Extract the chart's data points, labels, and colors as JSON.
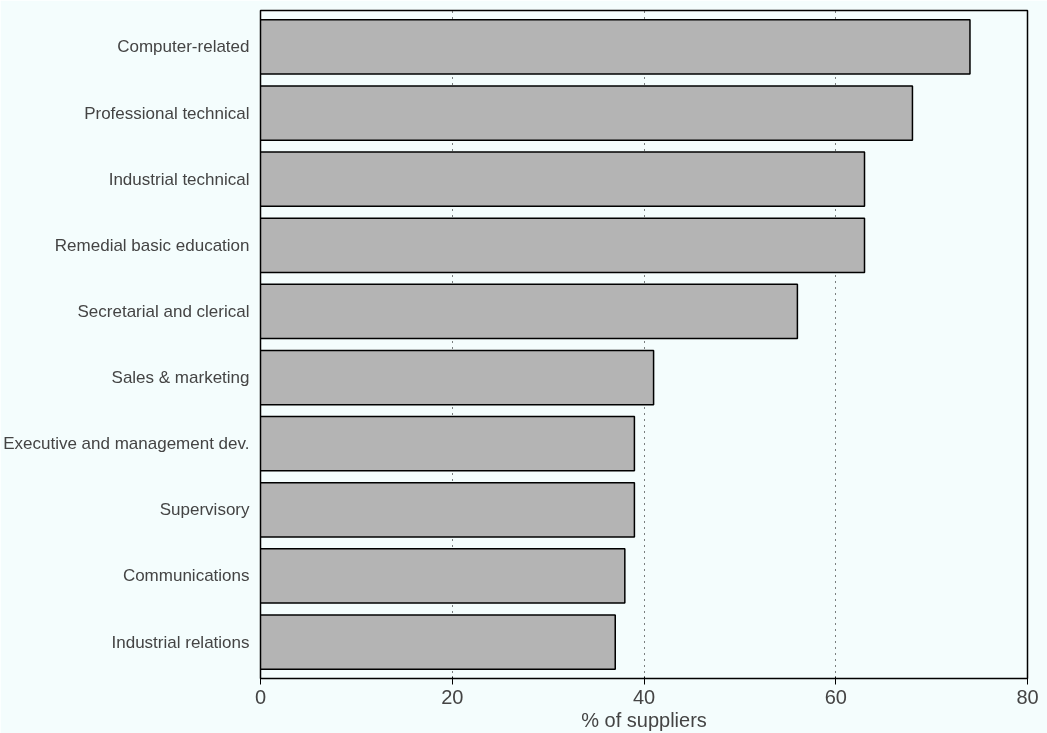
{
  "chart_data": {
    "type": "bar",
    "orientation": "horizontal",
    "xlabel": "% of suppliers",
    "categories": [
      "Computer-related",
      "Professional technical",
      "Industrial technical",
      "Remedial basic education",
      "Secretarial and clerical",
      "Sales & marketing",
      "Executive and management dev.",
      "Supervisory",
      "Communications",
      "Industrial relations"
    ],
    "values": [
      74,
      68,
      63,
      63,
      56,
      41,
      39,
      39,
      38,
      37
    ],
    "color": "#b4b4b4",
    "xlim": [
      0,
      80
    ],
    "xticks": [
      0,
      20,
      40,
      60,
      80
    ],
    "grid": "x"
  }
}
